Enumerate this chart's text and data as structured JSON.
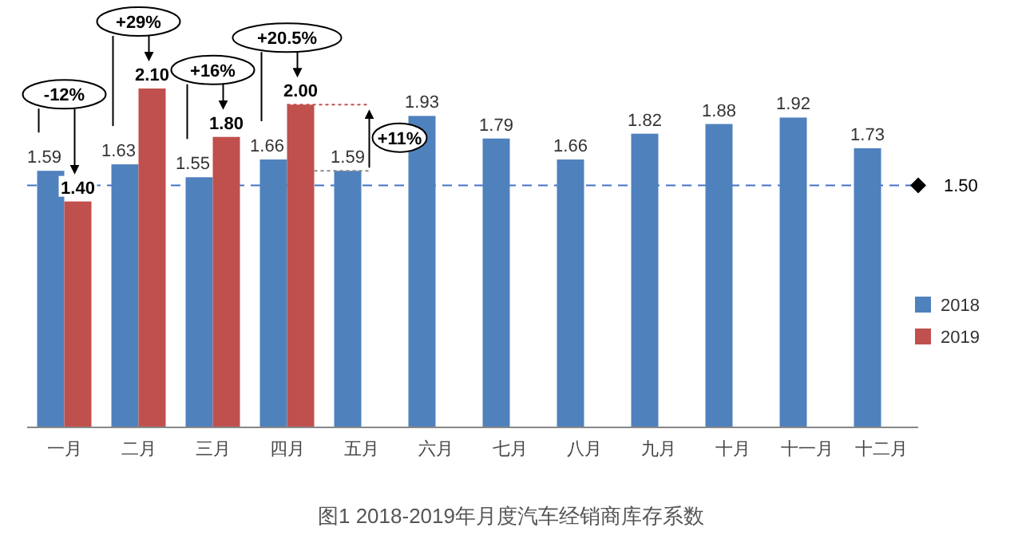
{
  "chart_data": {
    "type": "bar",
    "title": "图1  2018-2019年月度汽车经销商库存系数",
    "categories": [
      "一月",
      "二月",
      "三月",
      "四月",
      "五月",
      "六月",
      "七月",
      "八月",
      "九月",
      "十月",
      "十一月",
      "十二月"
    ],
    "series": [
      {
        "name": "2018",
        "color": "#4f81bd",
        "values": [
          1.59,
          1.63,
          1.55,
          1.66,
          1.59,
          1.93,
          1.79,
          1.66,
          1.82,
          1.88,
          1.92,
          1.73
        ],
        "value_labels": [
          "1.59",
          "1.63",
          "1.55",
          "1.66",
          "1.59",
          "1.93",
          "1.79",
          "1.66",
          "1.82",
          "1.88",
          "1.92",
          "1.73"
        ]
      },
      {
        "name": "2019",
        "color": "#c0504d",
        "values": [
          1.4,
          2.1,
          1.8,
          2.0,
          null,
          null,
          null,
          null,
          null,
          null,
          null,
          null
        ],
        "value_labels": [
          "1.40",
          "2.10",
          "1.80",
          "2.00",
          null,
          null,
          null,
          null,
          null,
          null,
          null,
          null
        ]
      }
    ],
    "ref_lines": [
      {
        "axis": "y",
        "value": 1.5,
        "label": "1.50",
        "color": "#4472c4",
        "line_style": "dashed"
      }
    ],
    "annotations": [
      "-12%",
      "+29%",
      "+16%",
      "+20.5%",
      "+11%"
    ],
    "legend": "right"
  }
}
